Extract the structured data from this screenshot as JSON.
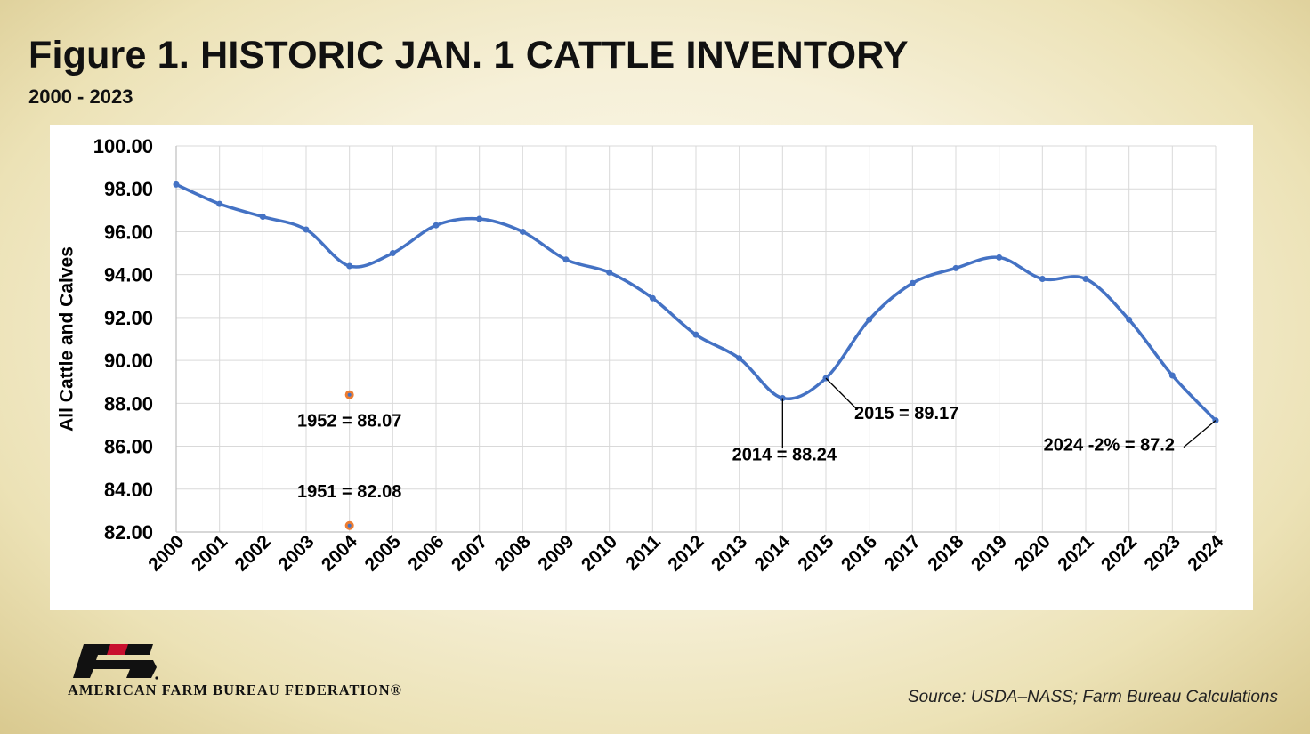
{
  "figure": {
    "title": "Figure  1. HISTORIC JAN. 1 CATTLE INVENTORY",
    "subtitle": "2000 - 2023",
    "source": "Source: USDA–NASS; Farm Bureau Calculations"
  },
  "branding": {
    "logo_mark": "FB",
    "org_name": "AMERICAN FARM BUREAU FEDERATION®"
  },
  "colors": {
    "line": "#4472c4",
    "marker_ref": "#ed7d31",
    "grid": "#d9d9d9"
  },
  "chart_data": {
    "type": "line",
    "ylabel": "All Cattle and Calves",
    "xlabel": "",
    "ylim": [
      82,
      100
    ],
    "ytick_step": 2,
    "y_tick_format": "2 decimals",
    "grid": true,
    "smooth": true,
    "categories": [
      "2000",
      "2001",
      "2002",
      "2003",
      "2004",
      "2005",
      "2006",
      "2007",
      "2008",
      "2009",
      "2010",
      "2011",
      "2012",
      "2013",
      "2014",
      "2015",
      "2016",
      "2017",
      "2018",
      "2019",
      "2020",
      "2021",
      "2022",
      "2023",
      "2024"
    ],
    "series": [
      {
        "values": [
          98.2,
          97.3,
          96.7,
          96.1,
          94.4,
          95.0,
          96.3,
          96.6,
          96.0,
          94.7,
          94.1,
          92.9,
          91.2,
          90.1,
          88.24,
          89.17,
          91.9,
          93.6,
          94.3,
          94.8,
          93.8,
          93.8,
          91.9,
          89.3,
          87.2
        ]
      }
    ],
    "reference_points": [
      {
        "category": "2004",
        "value": 88.4,
        "label": "1952 = 88.07"
      },
      {
        "category": "2004",
        "value": 82.3,
        "label": "1951 = 82.08"
      }
    ],
    "annotations": [
      {
        "category": "2014",
        "label": "2014 = 88.24"
      },
      {
        "category": "2015",
        "label": "2015 = 89.17"
      },
      {
        "category": "2024",
        "label": "2024 -2% = 87.2"
      }
    ]
  }
}
